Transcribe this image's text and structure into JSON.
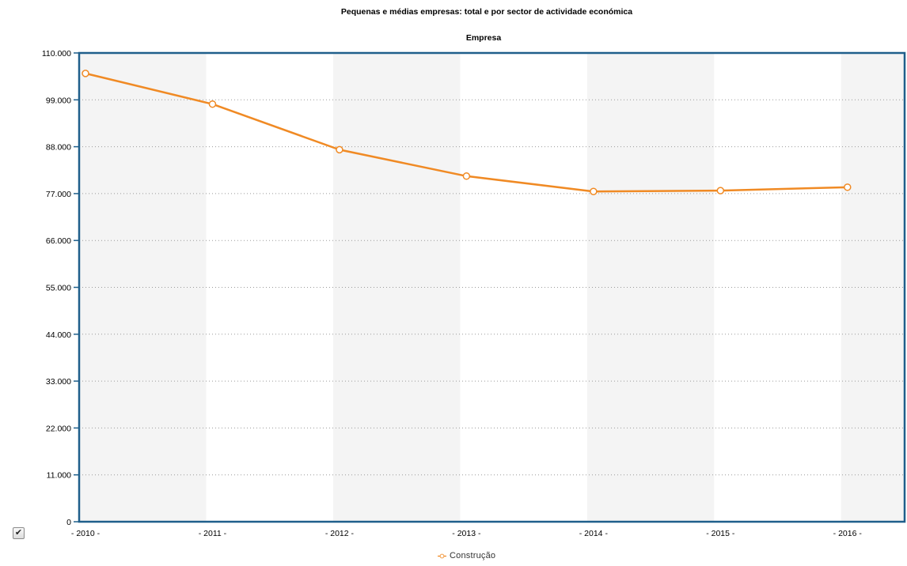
{
  "chart_data": {
    "type": "line",
    "title": "Pequenas e médias empresas: total e por sector de actividade económica",
    "subtitle": "Empresa",
    "categories": [
      "- 2010 -",
      "- 2011 -",
      "- 2012 -",
      "- 2013 -",
      "- 2014 -",
      "- 2015 -",
      "- 2016 -"
    ],
    "series": [
      {
        "name": "Construção",
        "values": [
          105200,
          98000,
          87300,
          81100,
          77500,
          77700,
          78500
        ],
        "color": "#f08a24"
      }
    ],
    "ylim": [
      0,
      110000
    ],
    "yticks": [
      0,
      11000,
      22000,
      33000,
      44000,
      55000,
      66000,
      77000,
      88000,
      99000,
      110000
    ],
    "ytick_labels": [
      "0",
      "11.000",
      "22.000",
      "33.000",
      "44.000",
      "55.000",
      "66.000",
      "77.000",
      "88.000",
      "99.000",
      "110.000"
    ],
    "grid": "horizontal dotted",
    "alternating_bands": true,
    "legend_position": "bottom-center",
    "frame_color": "#1f5f8b"
  },
  "controls": {
    "checkbox_checked": true,
    "checkbox_glyph": "✔"
  }
}
